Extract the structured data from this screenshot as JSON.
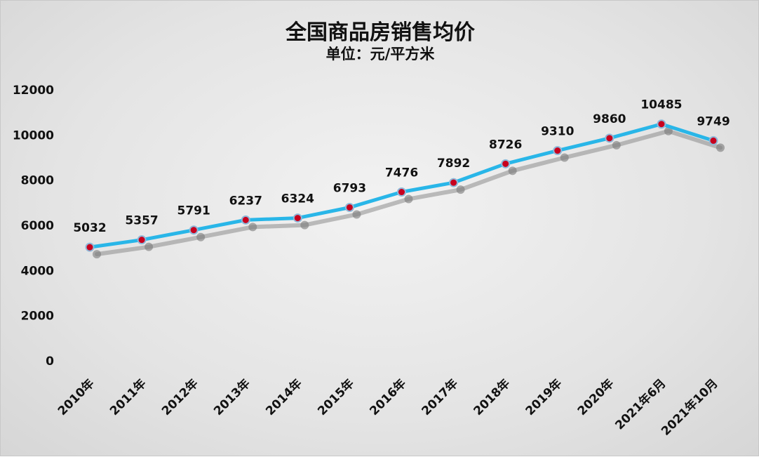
{
  "chart_data": {
    "type": "line",
    "title": "全国商品房销售均价",
    "subtitle": "单位：元/平方米",
    "xlabel": "",
    "ylabel": "",
    "categories": [
      "2010年",
      "2011年",
      "2012年",
      "2013年",
      "2014年",
      "2015年",
      "2016年",
      "2017年",
      "2018年",
      "2019年",
      "2020年",
      "2021年6月",
      "2021年10月"
    ],
    "series": [
      {
        "values": [
          5032,
          5357,
          5791,
          6237,
          6324,
          6793,
          7476,
          7892,
          8726,
          9310,
          9860,
          10485,
          9749
        ]
      }
    ],
    "yticks": [
      "0",
      "2000",
      "4000",
      "6000",
      "8000",
      "10000",
      "12000"
    ],
    "ylim": [
      0,
      12000
    ],
    "grid": false,
    "legend": "none",
    "line_color": "#29b6e8",
    "marker_color": "#c8001e",
    "shadow_color": "#8c8c8c"
  }
}
